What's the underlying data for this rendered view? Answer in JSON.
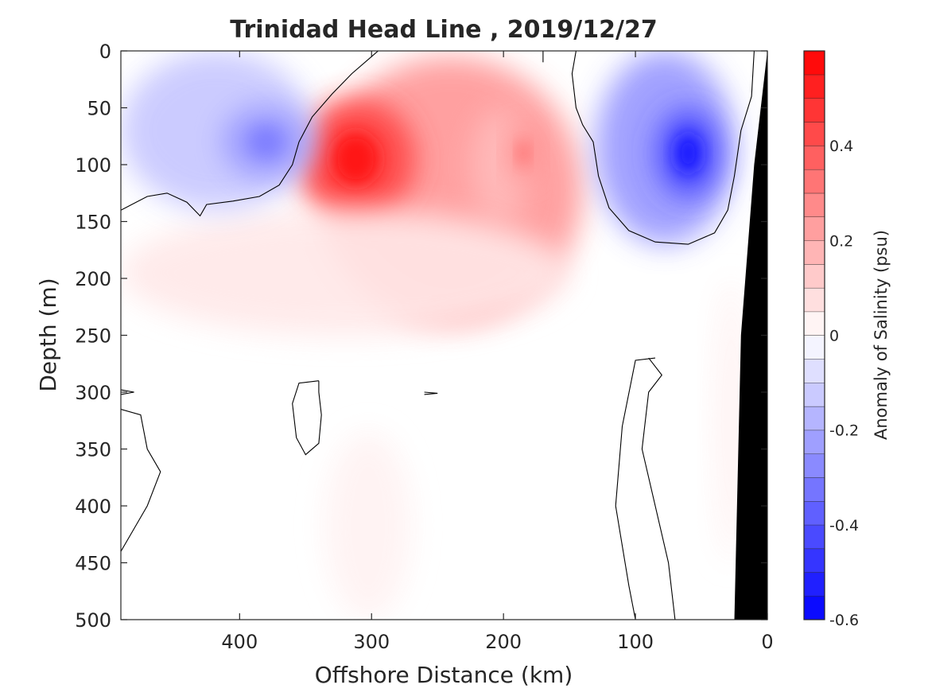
{
  "chart_data": {
    "type": "heatmap",
    "title": "Trinidad Head Line , 2019/12/27",
    "xlabel": "Offshore Distance (km)",
    "ylabel": "Depth (m)",
    "xlim": [
      490,
      0
    ],
    "ylim": [
      0,
      500
    ],
    "x_ticks": [
      "400",
      "300",
      "200",
      "100",
      "0"
    ],
    "y_ticks": [
      "0",
      "50",
      "100",
      "150",
      "200",
      "250",
      "300",
      "350",
      "400",
      "450",
      "500"
    ],
    "x_reversed": true,
    "y_reversed": true,
    "colorbar": {
      "label": "Anomaly of Salinity (psu)",
      "ticks": [
        "0.4",
        "0.2",
        "0",
        "-0.2",
        "-0.4",
        "-0.6"
      ],
      "range": [
        -0.6,
        0.6
      ],
      "step": 0.05,
      "colormap": "blue-white-red"
    },
    "features": [
      {
        "sign": "positive",
        "x_km": [
          140,
          340
        ],
        "depth_m": [
          5,
          240
        ],
        "peak": 0.55,
        "peak_x_km": 312,
        "peak_depth_m": 95
      },
      {
        "sign": "positive",
        "x_km": [
          180,
          225
        ],
        "depth_m": [
          50,
          150
        ],
        "peak": 0.35,
        "peak_x_km": 185,
        "peak_depth_m": 90
      },
      {
        "sign": "positive",
        "x_km": [
          150,
          490
        ],
        "depth_m": [
          140,
          250
        ],
        "peak": 0.12
      },
      {
        "sign": "negative",
        "x_km": [
          345,
          490
        ],
        "depth_m": [
          0,
          140
        ],
        "peak": -0.3,
        "peak_x_km": 380,
        "peak_depth_m": 80
      },
      {
        "sign": "negative",
        "x_km": [
          25,
          130
        ],
        "depth_m": [
          0,
          170
        ],
        "peak": -0.55,
        "peak_x_km": 60,
        "peak_depth_m": 90
      },
      {
        "sign": "positive",
        "x_km": [
          270,
          335
        ],
        "depth_m": [
          335,
          500
        ],
        "peak": 0.07
      },
      {
        "sign": "positive",
        "x_km": [
          15,
          40
        ],
        "depth_m": [
          200,
          450
        ],
        "peak": 0.07
      }
    ],
    "zero_contour_segments": [
      [
        [
          490,
          140
        ],
        [
          470,
          128
        ],
        [
          455,
          125
        ],
        [
          440,
          133
        ],
        [
          430,
          145
        ],
        [
          425,
          135
        ],
        [
          405,
          132
        ],
        [
          385,
          128
        ],
        [
          370,
          118
        ],
        [
          360,
          100
        ],
        [
          355,
          80
        ],
        [
          345,
          58
        ],
        [
          330,
          38
        ],
        [
          315,
          20
        ],
        [
          300,
          5
        ],
        [
          295,
          0
        ]
      ],
      [
        [
          170,
          0
        ],
        [
          170,
          10
        ]
      ],
      [
        [
          145,
          0
        ],
        [
          148,
          20
        ],
        [
          145,
          50
        ],
        [
          140,
          65
        ],
        [
          132,
          80
        ],
        [
          128,
          110
        ],
        [
          120,
          138
        ],
        [
          105,
          158
        ],
        [
          85,
          168
        ],
        [
          60,
          170
        ],
        [
          40,
          160
        ],
        [
          30,
          140
        ],
        [
          25,
          110
        ],
        [
          20,
          70
        ],
        [
          12,
          40
        ],
        [
          10,
          0
        ]
      ],
      [
        [
          340,
          290
        ],
        [
          355,
          292
        ],
        [
          360,
          310
        ],
        [
          357,
          340
        ],
        [
          350,
          355
        ],
        [
          340,
          345
        ],
        [
          338,
          320
        ],
        [
          340,
          300
        ],
        [
          340,
          290
        ]
      ],
      [
        [
          90,
          270
        ],
        [
          80,
          285
        ],
        [
          90,
          300
        ],
        [
          95,
          350
        ],
        [
          85,
          400
        ],
        [
          75,
          450
        ],
        [
          70,
          500
        ]
      ],
      [
        [
          85,
          270
        ],
        [
          100,
          272
        ],
        [
          110,
          330
        ],
        [
          115,
          400
        ],
        [
          105,
          470
        ],
        [
          100,
          500
        ]
      ],
      [
        [
          490,
          315
        ],
        [
          475,
          320
        ],
        [
          470,
          350
        ],
        [
          460,
          370
        ],
        [
          470,
          400
        ],
        [
          480,
          420
        ],
        [
          490,
          440
        ]
      ],
      [
        [
          490,
          298
        ],
        [
          480,
          300
        ],
        [
          490,
          302
        ]
      ],
      [
        [
          260,
          300
        ],
        [
          250,
          301
        ],
        [
          260,
          302
        ]
      ]
    ],
    "land_mask_x_km_at_depth": [
      [
        0,
        0
      ],
      [
        10,
        100
      ],
      [
        20,
        250
      ],
      [
        25,
        500
      ]
    ],
    "grid": false
  }
}
